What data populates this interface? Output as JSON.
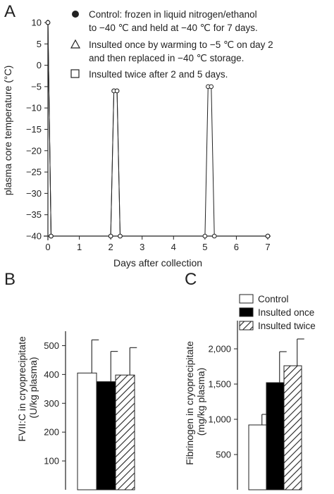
{
  "colors": {
    "ink": "#222222",
    "bar_white": "#ffffff",
    "bar_black": "#000000"
  },
  "chart_data": [
    {
      "panel": "A",
      "type": "line",
      "xlabel": "Days after collection",
      "ylabel": "plasma core temperature (°C)",
      "xlim": [
        0,
        7
      ],
      "ylim": [
        -40,
        10
      ],
      "xticks": [
        "0",
        "1",
        "2",
        "3",
        "4",
        "5",
        "6",
        "7"
      ],
      "yticks": [
        "10",
        "5",
        "0",
        "-5",
        "-10",
        "-15",
        "-20",
        "-25",
        "-30",
        "-35",
        "-40"
      ],
      "legend": [
        {
          "marker": "●",
          "text": "Control: frozen in liquid nitrogen/ethanol to −40 ℃ and held at −40 ℃ for 7 days."
        },
        {
          "marker": "△",
          "text": "Insulted once by warming to −5 ℃ on day 2 and then replaced in −40 ℃ storage."
        },
        {
          "marker": "□",
          "text": "Insulted twice after 2 and 5 days."
        }
      ],
      "series": [
        {
          "name": "Control",
          "marker": "circle-filled",
          "x": [
            0,
            0.1,
            7
          ],
          "y": [
            10,
            -40,
            -40
          ]
        },
        {
          "name": "Insulted once",
          "marker": "circle-filled",
          "x": [
            0,
            0.1,
            2.0,
            2.1,
            2.2,
            2.3,
            7
          ],
          "y": [
            10,
            -40,
            -40,
            -6,
            -6,
            -40,
            -40
          ]
        },
        {
          "name": "Insulted twice",
          "marker": "circle-open",
          "x": [
            0,
            0.1,
            2.0,
            2.1,
            2.2,
            2.3,
            5.0,
            5.1,
            5.2,
            5.3,
            7
          ],
          "y": [
            10,
            -40,
            -40,
            -6,
            -6,
            -40,
            -40,
            -5,
            -5,
            -40,
            -40
          ]
        }
      ]
    },
    {
      "panel": "B",
      "type": "bar",
      "ylabel": "FVII:C in cryoprecipitate (U/kg plasma)",
      "ylim": [
        0,
        550
      ],
      "yticks": [
        "100",
        "200",
        "300",
        "400",
        "500"
      ],
      "series": [
        {
          "name": "Control",
          "fill": "white",
          "value": 405,
          "error": 115
        },
        {
          "name": "Insulted once",
          "fill": "black",
          "value": 375,
          "error": 105
        },
        {
          "name": "Insulted twice",
          "fill": "hatch",
          "value": 398,
          "error": 95
        }
      ]
    },
    {
      "panel": "C",
      "type": "bar",
      "ylabel": "Fibrinogen in cryoprecipitate (mg/kg plasma)",
      "ylim": [
        0,
        2400
      ],
      "yticks": [
        "500",
        "1,000",
        "1,500",
        "2,000"
      ],
      "legend": [
        "Control",
        "Insulted once",
        "Insulted twice"
      ],
      "series": [
        {
          "name": "Control",
          "fill": "white",
          "value": 920,
          "error": 150
        },
        {
          "name": "Insulted once",
          "fill": "black",
          "value": 1520,
          "error": 440
        },
        {
          "name": "Insulted twice",
          "fill": "hatch",
          "value": 1760,
          "error": 380
        }
      ]
    }
  ]
}
